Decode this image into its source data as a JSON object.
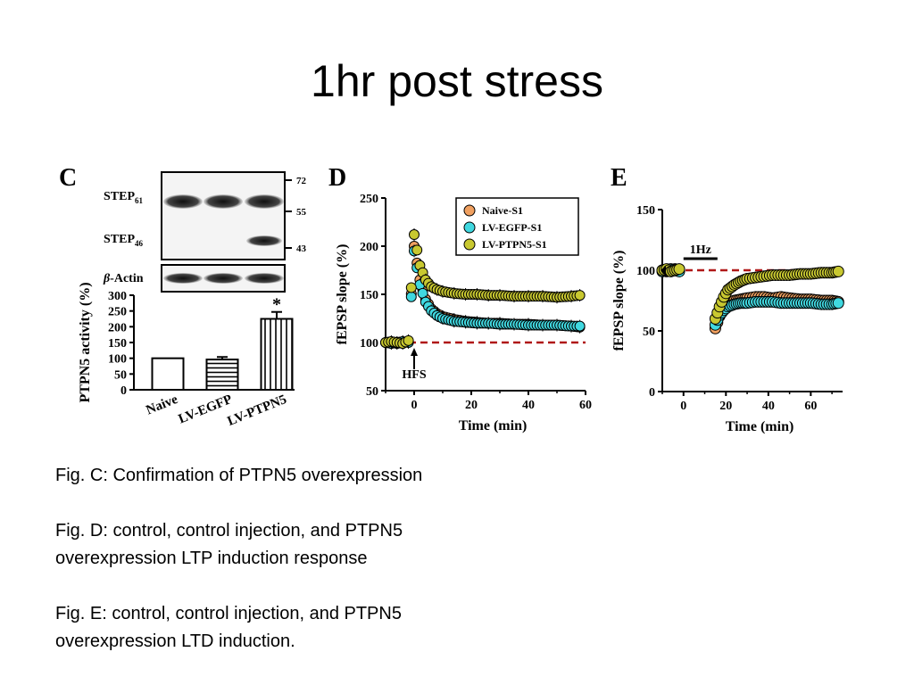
{
  "slide": {
    "title": "1hr post stress",
    "captions": [
      "Fig. C: Confirmation of PTPN5 overexpression",
      "Fig. D: control, control injection, and PTPN5",
      "overexpression LTP induction response",
      "Fig. E: control, control injection, and PTPN5",
      "overexpression LTD induction."
    ]
  },
  "colors": {
    "naive": "#f0a060",
    "egfp": "#40d8e0",
    "ptpn5": "#c8c830",
    "baseline": "#b01818"
  },
  "blot": {
    "panel_letter": "C",
    "row1_label": "STEP",
    "row1_sub": "61",
    "row2_label": "STEP",
    "row2_sub": "46",
    "actin_beta": "β",
    "actin_label": "-Actin",
    "mw_markers": [
      "72",
      "55",
      "43"
    ]
  },
  "chart_data": [
    {
      "type": "bar",
      "panel": "C",
      "categories": [
        "Naive",
        "LV-EGFP",
        "LV-PTPN5"
      ],
      "values": [
        100,
        96,
        225
      ],
      "errors": [
        0,
        8,
        22
      ],
      "ylabel": "PTPN5 activity (%)",
      "ylim": [
        0,
        300
      ],
      "yticks": [
        "0",
        "50",
        "100",
        "150",
        "200",
        "250",
        "300"
      ],
      "annotation": "*",
      "fills": [
        "open",
        "horizontal-stripes",
        "vertical-stripes"
      ]
    },
    {
      "type": "scatter",
      "panel": "D",
      "panel_letter": "D",
      "xlabel": "Time (min)",
      "ylabel": "fEPSP slope (%)",
      "xlim": [
        -10,
        60
      ],
      "ylim": [
        50,
        250
      ],
      "xticks": [
        "0",
        "20",
        "40",
        "60"
      ],
      "yticks": [
        "50",
        "100",
        "150",
        "200",
        "250"
      ],
      "baseline": 100,
      "annotation": "HFS",
      "legend": [
        "Naive-S1",
        "LV-EGFP-S1",
        "LV-PTPN5-S1"
      ],
      "legend_position": "top-right",
      "series": [
        {
          "name": "Naive-S1",
          "x": [
            -10,
            -8,
            -6,
            -4,
            -2,
            0,
            2,
            4,
            6,
            8,
            10,
            14,
            18,
            22,
            26,
            30,
            35,
            40,
            45,
            50,
            55,
            58
          ],
          "y": [
            100,
            100,
            99,
            100,
            101,
            200,
            165,
            145,
            135,
            130,
            127,
            124,
            122,
            121,
            120,
            120,
            119,
            119,
            118,
            118,
            117,
            116
          ]
        },
        {
          "name": "LV-EGFP-S1",
          "x": [
            -10,
            -8,
            -6,
            -4,
            -2,
            0,
            2,
            4,
            6,
            8,
            10,
            14,
            18,
            22,
            26,
            30,
            35,
            40,
            45,
            50,
            55,
            58
          ],
          "y": [
            100,
            99,
            100,
            101,
            100,
            195,
            160,
            142,
            133,
            128,
            125,
            122,
            121,
            120,
            120,
            119,
            119,
            118,
            118,
            118,
            117,
            117
          ]
        },
        {
          "name": "LV-PTPN5-S1",
          "x": [
            -10,
            -8,
            -6,
            -4,
            -2,
            0,
            2,
            4,
            6,
            8,
            10,
            14,
            18,
            22,
            26,
            30,
            35,
            40,
            45,
            50,
            55,
            58
          ],
          "y": [
            100,
            101,
            100,
            99,
            102,
            212,
            180,
            165,
            158,
            155,
            153,
            151,
            150,
            150,
            149,
            149,
            148,
            148,
            148,
            147,
            148,
            149
          ]
        }
      ]
    },
    {
      "type": "scatter",
      "panel": "E",
      "panel_letter": "E",
      "xlabel": "Time (min)",
      "ylabel": "fEPSP slope (%)",
      "xlim": [
        -10,
        75
      ],
      "ylim": [
        0,
        150
      ],
      "xticks": [
        "0",
        "20",
        "40",
        "60"
      ],
      "yticks": [
        "0",
        "50",
        "100",
        "150"
      ],
      "baseline": 100,
      "annotation": "1Hz",
      "series": [
        {
          "name": "Naive",
          "x": [
            -10,
            -8,
            -6,
            -4,
            -2,
            15,
            17,
            19,
            21,
            24,
            27,
            30,
            34,
            38,
            42,
            46,
            50,
            55,
            60,
            65,
            70,
            73
          ],
          "y": [
            100,
            99,
            100,
            101,
            100,
            52,
            62,
            68,
            72,
            75,
            76,
            77,
            78,
            78,
            77,
            78,
            77,
            76,
            76,
            75,
            75,
            74
          ]
        },
        {
          "name": "LV-EGFP",
          "x": [
            -10,
            -8,
            -6,
            -4,
            -2,
            15,
            17,
            19,
            21,
            24,
            27,
            30,
            34,
            38,
            42,
            46,
            50,
            55,
            60,
            65,
            70,
            73
          ],
          "y": [
            99,
            100,
            101,
            100,
            99,
            55,
            63,
            67,
            70,
            72,
            73,
            73,
            74,
            74,
            74,
            73,
            73,
            73,
            73,
            72,
            72,
            73
          ]
        },
        {
          "name": "LV-PTPN5",
          "x": [
            -10,
            -8,
            -6,
            -4,
            -2,
            15,
            17,
            19,
            21,
            24,
            27,
            30,
            34,
            38,
            42,
            46,
            50,
            55,
            60,
            65,
            70,
            73
          ],
          "y": [
            100,
            101,
            99,
            100,
            101,
            60,
            70,
            78,
            84,
            88,
            91,
            93,
            94,
            95,
            96,
            96,
            96,
            97,
            97,
            98,
            98,
            99
          ]
        }
      ]
    }
  ]
}
